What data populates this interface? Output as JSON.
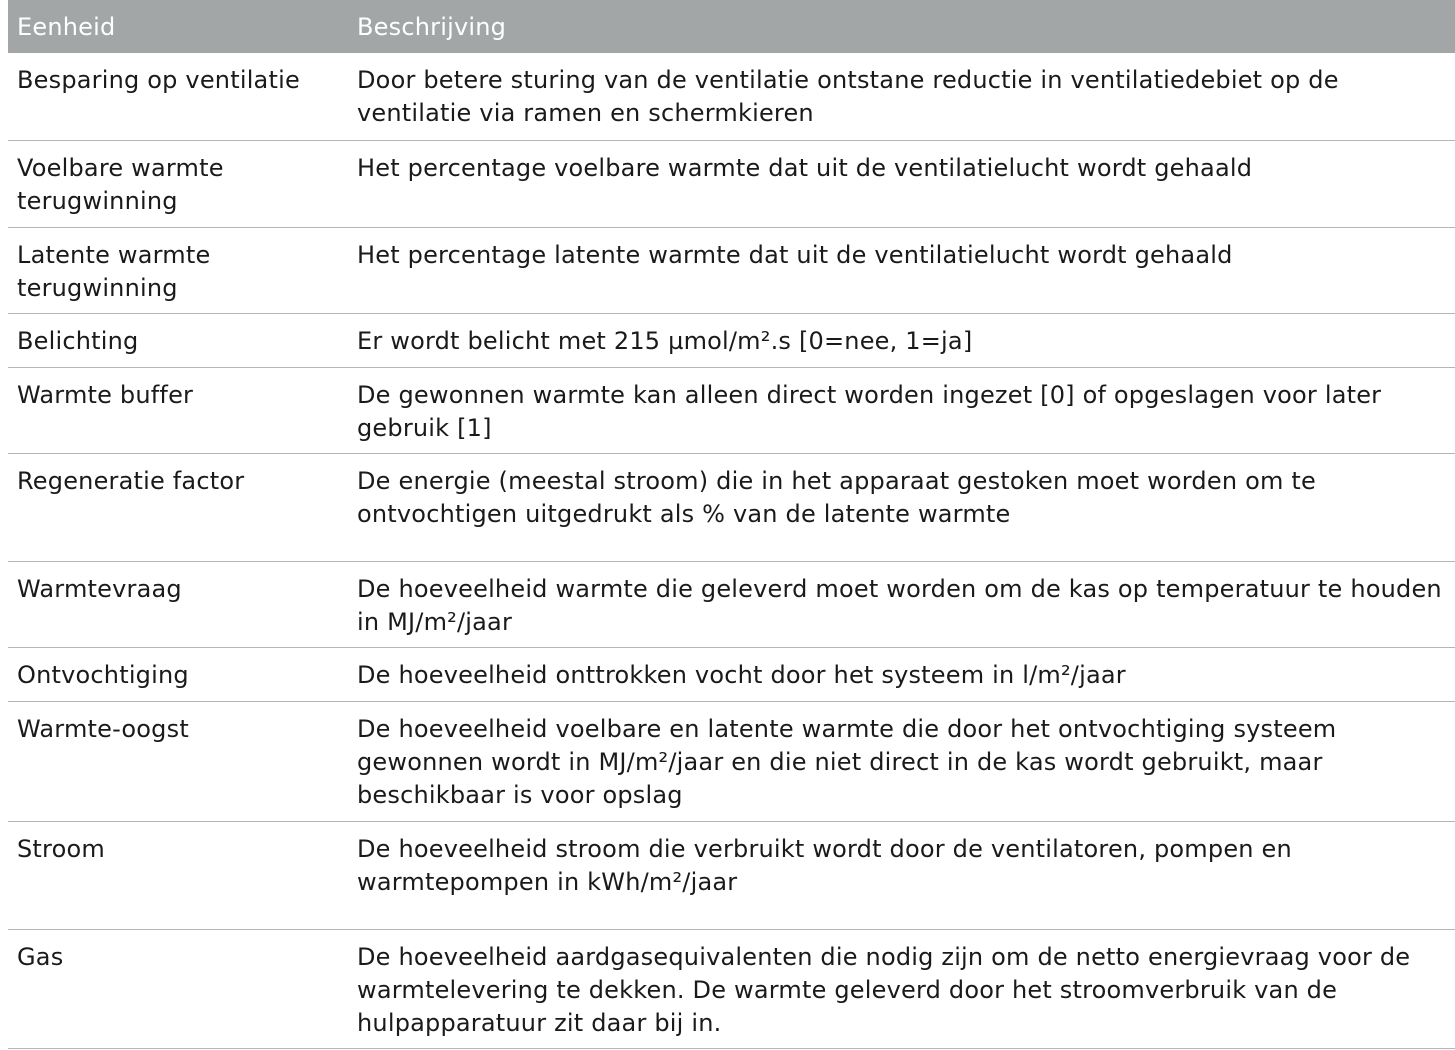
{
  "table": {
    "headers": {
      "unit": "Eenheid",
      "description": "Beschrijving"
    },
    "rows": [
      {
        "unit": "Besparing op ventilatie",
        "description": "Door betere sturing van de ventilatie ontstane reductie in ventilatiedebiet op de ventilatie via ramen en schermkieren"
      },
      {
        "unit": "Voelbare warmte terugwinning",
        "description": "Het percentage voelbare warmte dat uit de ventilatielucht wordt gehaald"
      },
      {
        "unit": "Latente warmte terugwinning",
        "description": "Het percentage latente warmte dat uit de ventilatielucht wordt gehaald"
      },
      {
        "unit": "Belichting",
        "description": "Er wordt belicht met 215 µmol/m².s [0=nee, 1=ja]"
      },
      {
        "unit": "Warmte buffer",
        "description": "De gewonnen warmte kan alleen direct worden ingezet [0] of opgeslagen voor later gebruik [1]"
      },
      {
        "unit": "Regeneratie factor",
        "description": "De energie (meestal stroom) die in het apparaat gestoken moet worden om te ontvochtigen uitgedrukt als % van de latente warmte"
      },
      {
        "unit": "Warmtevraag",
        "description": "De hoeveelheid warmte die geleverd moet worden om de kas op temperatuur te houden in MJ/m²/jaar"
      },
      {
        "unit": "Ontvochtiging",
        "description": "De hoeveelheid onttrokken vocht door het systeem in l/m²/jaar"
      },
      {
        "unit": "Warmte-oogst",
        "description": "De hoeveelheid voelbare en latente warmte die door het ontvochtiging systeem gewonnen wordt in MJ/m²/jaar en die niet direct in de kas wordt gebruikt, maar beschikbaar is voor opslag"
      },
      {
        "unit": "Stroom",
        "description": "De hoeveelheid stroom die verbruikt wordt door de ventilatoren, pompen en warmtepompen in kWh/m²/jaar"
      },
      {
        "unit": "Gas",
        "description": "De hoeveelheid aardgasequivalenten die nodig zijn om de netto energievraag voor de warmtelevering te dekken. De warmte geleverd door het stroomverbruik van de hulpapparatuur zit daar bij in."
      }
    ]
  }
}
